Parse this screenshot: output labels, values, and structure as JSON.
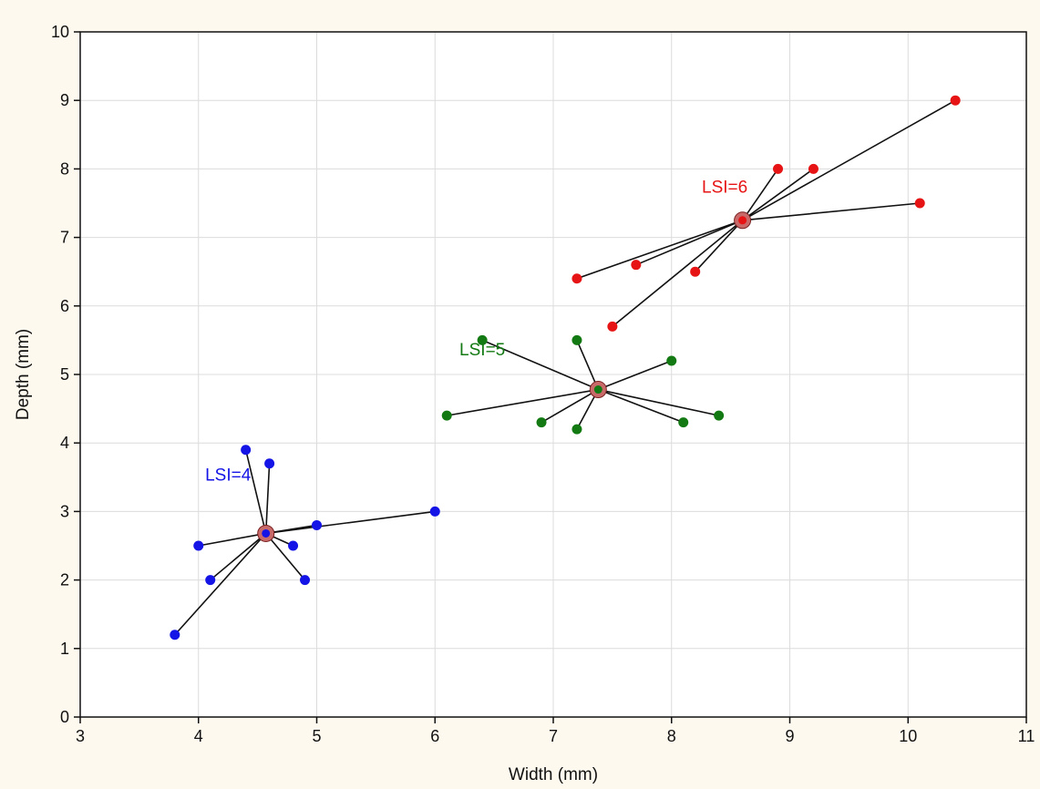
{
  "chart_data": {
    "type": "scatter",
    "title": "",
    "xlabel": "Width (mm)",
    "ylabel": "Depth (mm)",
    "xlim": [
      3,
      11
    ],
    "ylim": [
      0,
      10
    ],
    "xticks": [
      "3",
      "4",
      "5",
      "6",
      "7",
      "8",
      "9",
      "10",
      "11"
    ],
    "yticks": [
      "0",
      "1",
      "2",
      "3",
      "4",
      "5",
      "6",
      "7",
      "8",
      "9",
      "10"
    ],
    "grid": true,
    "legend": "none",
    "series": [
      {
        "label": "LSI=4",
        "color": "#1414e6",
        "centroid": [
          4.57,
          2.68
        ],
        "points": [
          [
            3.8,
            1.2
          ],
          [
            4.0,
            2.5
          ],
          [
            4.1,
            2.0
          ],
          [
            4.4,
            3.9
          ],
          [
            4.6,
            3.7
          ],
          [
            4.8,
            2.5
          ],
          [
            4.9,
            2.0
          ],
          [
            5.0,
            2.8
          ],
          [
            6.0,
            3.0
          ]
        ]
      },
      {
        "label": "LSI=5",
        "color": "#137a13",
        "centroid": [
          7.38,
          4.78
        ],
        "points": [
          [
            6.1,
            4.4
          ],
          [
            6.4,
            5.5
          ],
          [
            6.9,
            4.3
          ],
          [
            7.2,
            5.5
          ],
          [
            7.2,
            4.2
          ],
          [
            8.0,
            5.2
          ],
          [
            8.1,
            4.3
          ],
          [
            8.4,
            4.4
          ]
        ]
      },
      {
        "label": "LSI=6",
        "color": "#e61414",
        "centroid": [
          8.6,
          7.25
        ],
        "points": [
          [
            7.2,
            6.4
          ],
          [
            7.5,
            5.7
          ],
          [
            7.7,
            6.6
          ],
          [
            8.2,
            6.5
          ],
          [
            8.9,
            8.0
          ],
          [
            9.2,
            8.0
          ],
          [
            10.1,
            7.5
          ],
          [
            10.4,
            9.0
          ]
        ]
      }
    ],
    "annotations": [
      {
        "text": "LSI=4",
        "x": 4.25,
        "y": 3.45,
        "color": "#1414e6"
      },
      {
        "text": "LSI=5",
        "x": 6.4,
        "y": 5.28,
        "color": "#137a13"
      },
      {
        "text": "LSI=6",
        "x": 8.45,
        "y": 7.65,
        "color": "#e61414"
      }
    ]
  }
}
